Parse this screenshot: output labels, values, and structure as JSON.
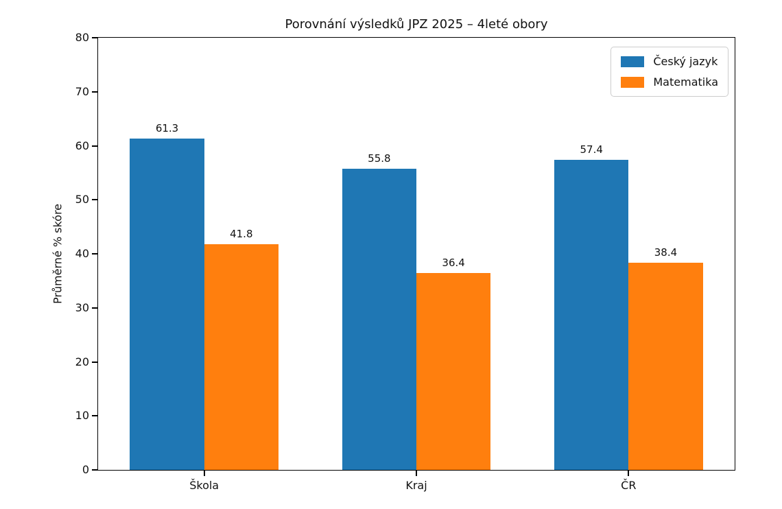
{
  "chart_data": {
    "type": "bar",
    "title": "Porovnání výsledků JPZ 2025 – 4leté obory",
    "ylabel": "Průměrné % skóre",
    "xlabel": "",
    "categories": [
      "Škola",
      "Kraj",
      "ČR"
    ],
    "series": [
      {
        "name": "Český jazyk",
        "color": "#1f77b4",
        "values": [
          61.3,
          55.8,
          57.4
        ]
      },
      {
        "name": "Matematika",
        "color": "#ff7f0e",
        "values": [
          41.8,
          36.4,
          38.4
        ]
      }
    ],
    "ylim": [
      0,
      80
    ],
    "ytick_step": 10,
    "bar_width": 0.35,
    "grid": false,
    "value_labels": true,
    "legend_position": "upper right"
  }
}
